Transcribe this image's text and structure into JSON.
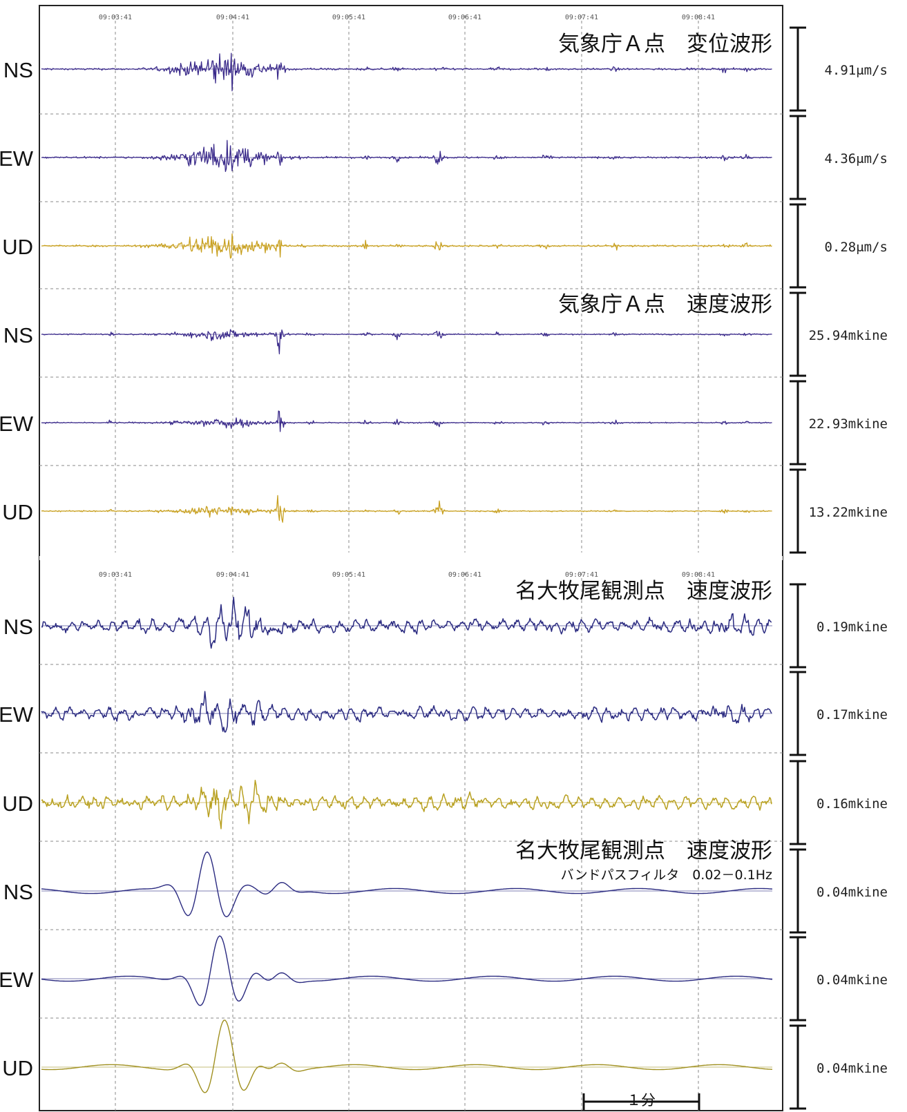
{
  "chart_data": {
    "type": "line",
    "x_unit": "time (hh:mm:ss)",
    "time_ticks": [
      "09:03:41",
      "09:04:41",
      "09:05:41",
      "09:06:41",
      "09:07:41",
      "09:08:41"
    ],
    "panels": [
      {
        "title": "気象庁Ａ点　変位波形",
        "subtitle": "",
        "channels": [
          {
            "label": "NS",
            "scale": "4.91μm/s",
            "color": "#3a2a8a",
            "kind": "burst"
          },
          {
            "label": "EW",
            "scale": "4.36μm/s",
            "color": "#3a2a8a",
            "kind": "burst"
          },
          {
            "label": "UD",
            "scale": "0.28μm/s",
            "color": "#c8a020",
            "kind": "burst"
          }
        ]
      },
      {
        "title": "気象庁Ａ点　速度波形",
        "subtitle": "",
        "channels": [
          {
            "label": "NS",
            "scale": "25.94mkine",
            "color": "#3a2a8a",
            "kind": "spiky"
          },
          {
            "label": "EW",
            "scale": "22.93mkine",
            "color": "#3a2a8a",
            "kind": "spiky"
          },
          {
            "label": "UD",
            "scale": "13.22mkine",
            "color": "#c8a020",
            "kind": "spiky"
          }
        ]
      },
      {
        "title": "名大牧尾観測点　速度波形",
        "subtitle": "",
        "channels": [
          {
            "label": "NS",
            "scale": "0.19mkine",
            "color": "#2a2a80",
            "kind": "noisy"
          },
          {
            "label": "EW",
            "scale": "0.17mkine",
            "color": "#2a2a80",
            "kind": "noisy"
          },
          {
            "label": "UD",
            "scale": "0.16mkine",
            "color": "#b8a020",
            "kind": "noisy"
          }
        ]
      },
      {
        "title": "名大牧尾観測点　速度波形",
        "subtitle": "バンドパスフィルタ　0.02－0.1Hz",
        "channels": [
          {
            "label": "NS",
            "scale": "0.04mkine",
            "color": "#2a2a80",
            "kind": "filtered"
          },
          {
            "label": "EW",
            "scale": "0.04mkine",
            "color": "#2a2a80",
            "kind": "filtered"
          },
          {
            "label": "UD",
            "scale": "0.04mkine",
            "color": "#a09020",
            "kind": "filtered"
          }
        ]
      }
    ],
    "time_scale_bar": "１分"
  },
  "colors": {
    "frame": "#222222",
    "grid": "#8a8a8a",
    "purple": "#3a2a8a",
    "gold": "#c8a020"
  }
}
